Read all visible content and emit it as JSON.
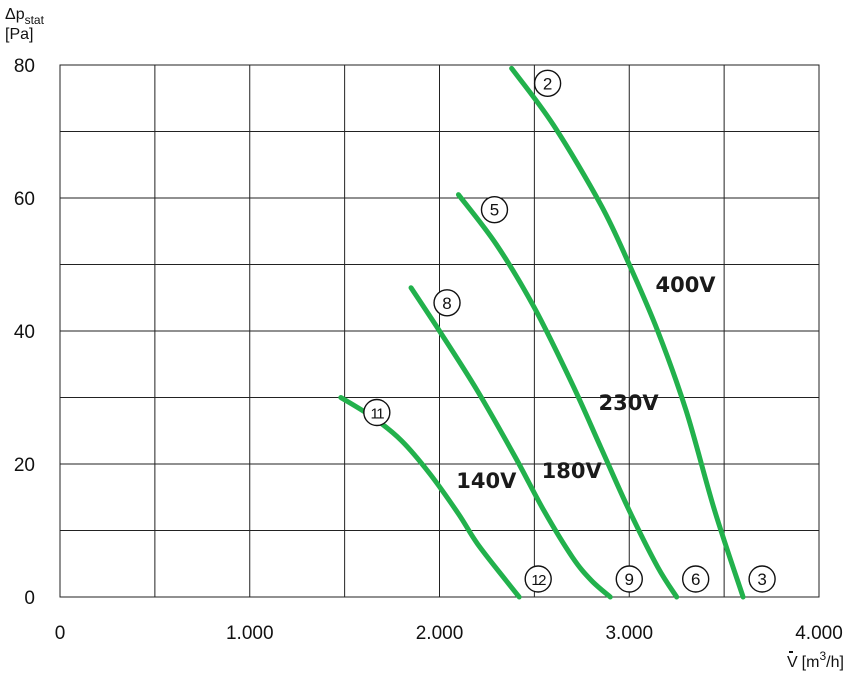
{
  "chart_data": {
    "type": "line",
    "title": "",
    "ylabel": {
      "prefix": "Δp",
      "subscript": "stat",
      "unit": "[Pa]"
    },
    "xlabel": {
      "symbol": "V",
      "unit_prefix": "[m",
      "unit_sup": "3",
      "unit_suffix": "/h]"
    },
    "xlim": [
      0,
      4000
    ],
    "ylim": [
      0,
      80
    ],
    "x_ticks": [
      {
        "value": 0,
        "label": "0"
      },
      {
        "value": 1000,
        "label": "1.000"
      },
      {
        "value": 2000,
        "label": "2.000"
      },
      {
        "value": 3000,
        "label": "3.000"
      },
      {
        "value": 4000,
        "label": "4.000"
      }
    ],
    "y_ticks": [
      {
        "value": 0,
        "label": "0"
      },
      {
        "value": 20,
        "label": "20"
      },
      {
        "value": 40,
        "label": "40"
      },
      {
        "value": 60,
        "label": "60"
      },
      {
        "value": 80,
        "label": "80"
      }
    ],
    "grid": true,
    "line_color": "#22b14c",
    "series": [
      {
        "name": "400V",
        "x": [
          2380,
          2600,
          2850,
          3000,
          3150,
          3300,
          3450,
          3600
        ],
        "y": [
          79.5,
          71,
          59,
          50,
          40,
          28,
          13,
          0
        ],
        "start_marker": "2",
        "end_marker": "3"
      },
      {
        "name": "230V",
        "x": [
          2100,
          2300,
          2500,
          2700,
          2850,
          3000,
          3150,
          3250
        ],
        "y": [
          60.5,
          53,
          43.5,
          32,
          22.5,
          13,
          4.5,
          0
        ],
        "start_marker": "5",
        "end_marker": "6"
      },
      {
        "name": "180V",
        "x": [
          1850,
          2000,
          2200,
          2400,
          2550,
          2700,
          2800,
          2900
        ],
        "y": [
          46.5,
          40,
          31,
          21,
          13,
          6,
          2.5,
          0
        ],
        "start_marker": "8",
        "end_marker": "9"
      },
      {
        "name": "140V",
        "x": [
          1480,
          1650,
          1800,
          1950,
          2100,
          2200,
          2350,
          2420
        ],
        "y": [
          30,
          27,
          23.5,
          18.5,
          12.5,
          8,
          2.5,
          0
        ],
        "start_marker": "11",
        "end_marker": "12"
      }
    ]
  }
}
